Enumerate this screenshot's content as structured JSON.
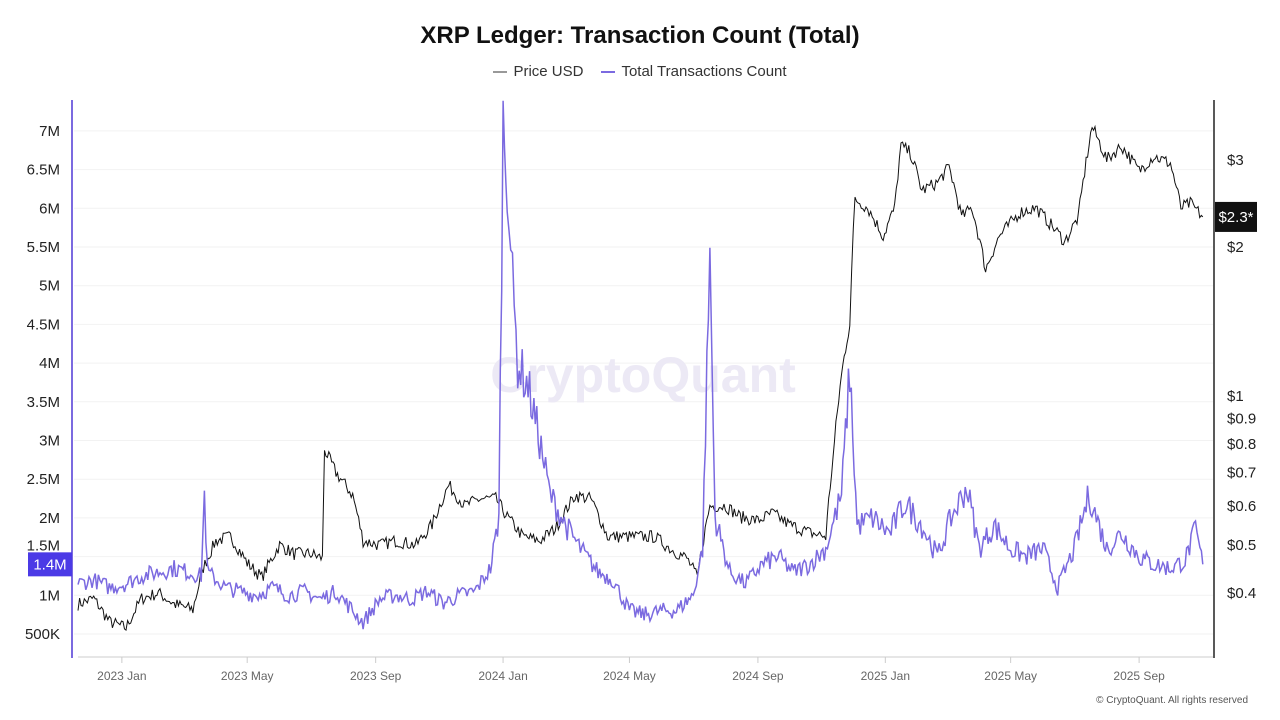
{
  "chart_data": {
    "type": "line",
    "title": "XRP Ledger: Transaction Count (Total)",
    "legend_position": "top",
    "grid": true,
    "watermark": "CryptoQuant",
    "credit": "© CryptoQuant. All rights reserved",
    "x_ticks": [
      "2023 Jan",
      "2023 May",
      "2023 Sep",
      "2024 Jan",
      "2024 May",
      "2024 Sep",
      "2025 Jan",
      "2025 May",
      "2025 Sep"
    ],
    "x_tick_dates": [
      "2023-01-01",
      "2023-05-01",
      "2023-09-01",
      "2024-01-01",
      "2024-05-01",
      "2024-09-01",
      "2025-01-01",
      "2025-05-01",
      "2025-09-01"
    ],
    "xlim": [
      "2022-11-20",
      "2025-11-05"
    ],
    "y_left": {
      "ticks": [
        "500K",
        "1M",
        "1.5M",
        "2M",
        "2.5M",
        "3M",
        "3.5M",
        "4M",
        "4.5M",
        "5M",
        "5.5M",
        "6M",
        "6.5M",
        "7M"
      ],
      "tick_values": [
        0.5,
        1,
        1.5,
        2,
        2.5,
        3,
        3.5,
        4,
        4.5,
        5,
        5.5,
        6,
        6.5,
        7
      ],
      "unit": "M",
      "scale": "linear",
      "current_label": "1.4M",
      "current_value": 1.4
    },
    "y_right": {
      "ticks": [
        "$0.4",
        "$0.5",
        "$0.6",
        "$0.7",
        "$0.8",
        "$0.9",
        "$1",
        "$2",
        "$3"
      ],
      "tick_values": [
        0.4,
        0.5,
        0.6,
        0.7,
        0.8,
        0.9,
        1,
        2,
        3
      ],
      "scale": "log",
      "current_label": "$2.3*",
      "current_value": 2.3
    },
    "colors": {
      "price": "#111111",
      "transactions": "#7b6ae0",
      "left_axis": "#7b6ae0",
      "current_tx_box": "#4b3ae6",
      "current_price_box": "#111111"
    },
    "series": [
      {
        "name": "Price USD",
        "axis": "right",
        "points": [
          [
            "2022-11-20",
            0.38
          ],
          [
            "2022-12-05",
            0.39
          ],
          [
            "2022-12-20",
            0.35
          ],
          [
            "2023-01-05",
            0.34
          ],
          [
            "2023-01-20",
            0.39
          ],
          [
            "2023-02-05",
            0.4
          ],
          [
            "2023-02-20",
            0.38
          ],
          [
            "2023-03-10",
            0.37
          ],
          [
            "2023-03-20",
            0.45
          ],
          [
            "2023-04-01",
            0.51
          ],
          [
            "2023-04-15",
            0.52
          ],
          [
            "2023-05-01",
            0.46
          ],
          [
            "2023-05-15",
            0.43
          ],
          [
            "2023-06-01",
            0.5
          ],
          [
            "2023-06-15",
            0.48
          ],
          [
            "2023-07-01",
            0.48
          ],
          [
            "2023-07-12",
            0.47
          ],
          [
            "2023-07-14",
            0.78
          ],
          [
            "2023-07-25",
            0.7
          ],
          [
            "2023-08-10",
            0.63
          ],
          [
            "2023-08-20",
            0.51
          ],
          [
            "2023-09-05",
            0.5
          ],
          [
            "2023-09-20",
            0.51
          ],
          [
            "2023-10-10",
            0.5
          ],
          [
            "2023-10-25",
            0.55
          ],
          [
            "2023-11-10",
            0.66
          ],
          [
            "2023-11-25",
            0.6
          ],
          [
            "2023-12-10",
            0.62
          ],
          [
            "2023-12-25",
            0.62
          ],
          [
            "2024-01-05",
            0.57
          ],
          [
            "2024-01-20",
            0.52
          ],
          [
            "2024-02-05",
            0.51
          ],
          [
            "2024-02-20",
            0.54
          ],
          [
            "2024-03-10",
            0.63
          ],
          [
            "2024-03-25",
            0.62
          ],
          [
            "2024-04-10",
            0.52
          ],
          [
            "2024-04-25",
            0.52
          ],
          [
            "2024-05-10",
            0.52
          ],
          [
            "2024-05-25",
            0.52
          ],
          [
            "2024-06-10",
            0.49
          ],
          [
            "2024-06-25",
            0.47
          ],
          [
            "2024-07-05",
            0.43
          ],
          [
            "2024-07-17",
            0.6
          ],
          [
            "2024-08-01",
            0.6
          ],
          [
            "2024-08-15",
            0.57
          ],
          [
            "2024-09-01",
            0.56
          ],
          [
            "2024-09-15",
            0.58
          ],
          [
            "2024-10-01",
            0.55
          ],
          [
            "2024-10-20",
            0.53
          ],
          [
            "2024-11-05",
            0.52
          ],
          [
            "2024-11-12",
            0.75
          ],
          [
            "2024-11-20",
            1.1
          ],
          [
            "2024-11-28",
            1.4
          ],
          [
            "2024-12-03",
            2.5
          ],
          [
            "2024-12-15",
            2.4
          ],
          [
            "2024-12-30",
            2.1
          ],
          [
            "2025-01-10",
            2.4
          ],
          [
            "2025-01-16",
            3.2
          ],
          [
            "2025-01-25",
            3.1
          ],
          [
            "2025-02-05",
            2.6
          ],
          [
            "2025-02-20",
            2.7
          ],
          [
            "2025-03-03",
            2.9
          ],
          [
            "2025-03-15",
            2.3
          ],
          [
            "2025-03-25",
            2.4
          ],
          [
            "2025-04-07",
            1.8
          ],
          [
            "2025-04-20",
            2.1
          ],
          [
            "2025-05-10",
            2.35
          ],
          [
            "2025-05-25",
            2.4
          ],
          [
            "2025-06-10",
            2.2
          ],
          [
            "2025-06-22",
            2.05
          ],
          [
            "2025-07-05",
            2.3
          ],
          [
            "2025-07-18",
            3.5
          ],
          [
            "2025-08-01",
            3.0
          ],
          [
            "2025-08-15",
            3.2
          ],
          [
            "2025-09-01",
            2.85
          ],
          [
            "2025-09-15",
            3.05
          ],
          [
            "2025-10-01",
            2.95
          ],
          [
            "2025-10-11",
            2.4
          ],
          [
            "2025-10-20",
            2.45
          ],
          [
            "2025-11-01",
            2.3
          ]
        ]
      },
      {
        "name": "Total Transactions Count",
        "axis": "left",
        "unit": "M",
        "points": [
          [
            "2022-11-20",
            1.15
          ],
          [
            "2022-12-05",
            1.2
          ],
          [
            "2022-12-20",
            1.1
          ],
          [
            "2023-01-05",
            1.15
          ],
          [
            "2023-01-20",
            1.25
          ],
          [
            "2023-02-05",
            1.3
          ],
          [
            "2023-02-20",
            1.35
          ],
          [
            "2023-03-05",
            1.3
          ],
          [
            "2023-03-18",
            1.25
          ],
          [
            "2023-03-21",
            2.3
          ],
          [
            "2023-03-24",
            1.3
          ],
          [
            "2023-04-10",
            1.1
          ],
          [
            "2023-04-25",
            1.05
          ],
          [
            "2023-05-10",
            1.0
          ],
          [
            "2023-05-25",
            1.1
          ],
          [
            "2023-06-10",
            1.0
          ],
          [
            "2023-06-25",
            1.05
          ],
          [
            "2023-07-10",
            0.95
          ],
          [
            "2023-07-25",
            1.05
          ],
          [
            "2023-08-10",
            0.8
          ],
          [
            "2023-08-20",
            0.65
          ],
          [
            "2023-09-05",
            0.95
          ],
          [
            "2023-09-20",
            1.0
          ],
          [
            "2023-10-05",
            0.95
          ],
          [
            "2023-10-20",
            1.05
          ],
          [
            "2023-11-05",
            0.9
          ],
          [
            "2023-11-20",
            1.0
          ],
          [
            "2023-12-05",
            1.05
          ],
          [
            "2023-12-20",
            1.35
          ],
          [
            "2023-12-28",
            2.0
          ],
          [
            "2024-01-01",
            7.1
          ],
          [
            "2024-01-05",
            6.5
          ],
          [
            "2024-01-10",
            5.0
          ],
          [
            "2024-01-15",
            4.0
          ],
          [
            "2024-01-25",
            3.7
          ],
          [
            "2024-02-05",
            3.0
          ],
          [
            "2024-02-15",
            2.3
          ],
          [
            "2024-03-01",
            1.9
          ],
          [
            "2024-03-15",
            1.6
          ],
          [
            "2024-04-01",
            1.3
          ],
          [
            "2024-04-15",
            1.2
          ],
          [
            "2024-05-01",
            0.8
          ],
          [
            "2024-05-15",
            0.75
          ],
          [
            "2024-06-01",
            0.8
          ],
          [
            "2024-06-15",
            0.8
          ],
          [
            "2024-07-01",
            1.0
          ],
          [
            "2024-07-10",
            1.6
          ],
          [
            "2024-07-17",
            5.4
          ],
          [
            "2024-07-22",
            2.0
          ],
          [
            "2024-08-05",
            1.3
          ],
          [
            "2024-08-20",
            1.15
          ],
          [
            "2024-09-05",
            1.4
          ],
          [
            "2024-09-20",
            1.5
          ],
          [
            "2024-10-05",
            1.3
          ],
          [
            "2024-10-20",
            1.4
          ],
          [
            "2024-11-05",
            1.6
          ],
          [
            "2024-11-20",
            2.3
          ],
          [
            "2024-11-28",
            3.9
          ],
          [
            "2024-12-05",
            1.9
          ],
          [
            "2024-12-20",
            2.0
          ],
          [
            "2025-01-05",
            1.8
          ],
          [
            "2025-01-20",
            2.2
          ],
          [
            "2025-02-05",
            1.9
          ],
          [
            "2025-02-20",
            1.5
          ],
          [
            "2025-03-05",
            2.0
          ],
          [
            "2025-03-20",
            2.4
          ],
          [
            "2025-04-01",
            1.6
          ],
          [
            "2025-04-15",
            1.9
          ],
          [
            "2025-05-01",
            1.6
          ],
          [
            "2025-05-15",
            1.5
          ],
          [
            "2025-06-01",
            1.6
          ],
          [
            "2025-06-15",
            1.1
          ],
          [
            "2025-07-01",
            1.6
          ],
          [
            "2025-07-15",
            2.3
          ],
          [
            "2025-08-01",
            1.6
          ],
          [
            "2025-08-15",
            1.8
          ],
          [
            "2025-09-01",
            1.5
          ],
          [
            "2025-09-15",
            1.4
          ],
          [
            "2025-10-01",
            1.35
          ],
          [
            "2025-10-15",
            1.45
          ],
          [
            "2025-10-25",
            1.85
          ],
          [
            "2025-11-01",
            1.4
          ]
        ]
      }
    ]
  }
}
